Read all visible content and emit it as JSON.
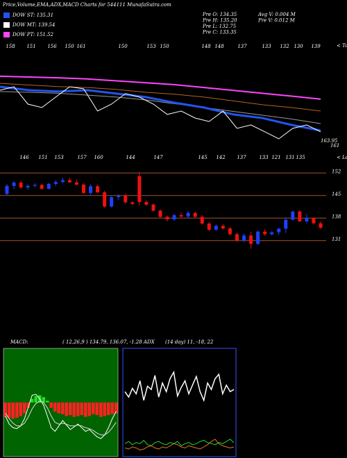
{
  "header": {
    "title": "Price,Volume,EMA,ADX,MACD Charts for 544111 MunafaSutra.com"
  },
  "legend": [
    {
      "label": "DOW ST: 135.31",
      "color": "#2255ee"
    },
    {
      "label": "DOW MT: 139.54",
      "color": "#ffffff"
    },
    {
      "label": "DOW PT: 151.52",
      "color": "#ff44ff"
    }
  ],
  "info": {
    "left": [
      "Pre  O: 134.35",
      "Pre  H: 135.20",
      "Pre  L: 132.75",
      "Pre  C: 133.35"
    ],
    "right": [
      "Avg  V: 0.004  M",
      "Pre  V: 0.012  M"
    ]
  },
  "chart_data": [
    {
      "type": "line",
      "top_labels": [
        "158",
        "151",
        "156",
        "150",
        "161",
        "150",
        "153",
        "150",
        "148",
        "148",
        "137",
        "133",
        "132",
        "130",
        "139"
      ],
      "tops_label": "< Tops",
      "last_label": "163.95",
      "corner_label": "161",
      "ylim": [
        120,
        160
      ],
      "series": [
        {
          "color": "#ff44ff",
          "width": 2,
          "values": [
            156.4,
            156,
            155.6,
            155,
            154,
            153,
            152,
            150.5,
            149,
            147.5,
            146,
            144.4
          ]
        },
        {
          "color": "#b5651d",
          "width": 1,
          "values": [
            152.7,
            151.8,
            151,
            150.5,
            149.5,
            148,
            147,
            145.5,
            143.5,
            141.5,
            140,
            138.2
          ]
        },
        {
          "color": "#999999",
          "width": 1,
          "values": [
            148.4,
            148,
            147.5,
            146.5,
            145.5,
            144,
            142,
            140,
            138,
            136,
            134,
            131.6
          ]
        },
        {
          "color": "#2255ee",
          "width": 3,
          "values": [
            150.9,
            149.1,
            148.4,
            149.1,
            147.3,
            145.5,
            142.5,
            140,
            136.4,
            134.5,
            130.9,
            128
          ]
        },
        {
          "color": "#ffffff",
          "width": 1,
          "values": [
            149.1,
            150.9,
            141.8,
            140,
            145.5,
            150.9,
            149.8,
            138.2,
            141.8,
            147.3,
            145.5,
            141.8,
            136.4,
            138.2,
            134.5,
            132.7,
            138.2,
            129.1,
            130.9,
            127.3,
            123.6,
            129.1,
            130.9,
            127.3
          ]
        }
      ]
    },
    {
      "type": "candlestick",
      "low_labels": [
        "146",
        "151",
        "153",
        "157",
        "160",
        "144",
        "147",
        "145",
        "142",
        "137",
        "133",
        "121",
        "131",
        "135"
      ],
      "lows_label": "< Lows",
      "ylim": [
        126,
        154
      ],
      "yticks": [
        131,
        138,
        145,
        152
      ],
      "up_color": "#1f3fff",
      "down_color": "#ee1111",
      "grid_color": "#a0522d",
      "open": [
        145.5,
        148.0,
        149.0,
        147.5,
        148.0,
        148.3,
        147.1,
        148.6,
        149.2,
        149.8,
        149.1,
        148.4,
        145.8,
        147.9,
        146.0,
        141.6,
        144.5,
        145.0,
        142.9,
        151.0,
        143.0,
        142.2,
        140.3,
        138.4,
        137.6,
        138.9,
        138.5,
        139.6,
        138.4,
        136.3,
        134.4,
        135.6,
        134.8,
        133.0,
        131.0,
        132.6,
        130.0,
        133.8,
        133.0,
        133.6,
        134.7,
        137.5,
        140.0,
        137.0,
        138.0,
        136.4
      ],
      "high": [
        148.6,
        149.5,
        149.6,
        148.5,
        148.8,
        148.6,
        149.0,
        149.8,
        150.6,
        150.5,
        150.0,
        148.8,
        148.5,
        148.4,
        146.5,
        144.8,
        145.4,
        145.7,
        143.2,
        152.3,
        143.5,
        142.6,
        140.7,
        138.8,
        139.4,
        139.8,
        140.2,
        140.0,
        138.9,
        136.8,
        136.0,
        136.1,
        135.2,
        133.5,
        133.2,
        133.8,
        134.2,
        134.5,
        134.0,
        135.0,
        138.3,
        140.4,
        140.5,
        139.3,
        138.2,
        137.0
      ],
      "low": [
        145.0,
        147.0,
        147.2,
        146.9,
        147.5,
        146.8,
        146.9,
        148.0,
        148.8,
        148.9,
        148.2,
        145.5,
        145.0,
        145.7,
        141.2,
        141.3,
        143.6,
        142.5,
        142.0,
        142.0,
        141.8,
        140.0,
        138.0,
        137.0,
        137.2,
        138.1,
        138.0,
        138.2,
        136.0,
        134.0,
        134.0,
        134.5,
        132.6,
        130.6,
        130.5,
        128.5,
        129.6,
        132.5,
        132.6,
        132.8,
        133.4,
        137.2,
        136.7,
        136.4,
        136.0,
        134.6
      ],
      "close": [
        148.0,
        149.0,
        147.5,
        148.0,
        148.3,
        147.1,
        148.6,
        149.2,
        149.8,
        149.1,
        148.4,
        145.8,
        147.9,
        146.0,
        141.6,
        144.5,
        145.0,
        142.9,
        142.4,
        143.0,
        142.2,
        140.3,
        138.4,
        137.6,
        138.9,
        138.5,
        139.6,
        138.4,
        136.3,
        134.4,
        135.6,
        134.8,
        133.0,
        131.0,
        132.6,
        130.0,
        133.8,
        133.0,
        133.6,
        134.7,
        137.5,
        140.0,
        137.0,
        138.0,
        136.4,
        135.0
      ]
    },
    {
      "type": "macd",
      "title": "MACD:",
      "params": "( 12,26,9 ) 134.79, 136.07, -1.28 ADX",
      "ylim": [
        -6,
        6
      ],
      "pos_color": "#22dd22",
      "neg_color": "#ff2222",
      "hist": [
        -1.6,
        -1.7,
        -1.8,
        -1.7,
        -1.5,
        -1.2,
        -0.6,
        0.4,
        0.7,
        0.8,
        0.6,
        0.2,
        -0.6,
        -1.0,
        -1.2,
        -1.3,
        -1.5,
        -1.4,
        -1.6,
        -1.5,
        -1.4,
        -1.6,
        -1.5,
        -1.3,
        -1.4,
        -1.6,
        -1.5,
        -1.4,
        -1.3,
        -1.2
      ],
      "series": [
        {
          "color": "#ffffff",
          "values": [
            -1.5,
            -2.4,
            -2.8,
            -2.9,
            -2.6,
            -1.8,
            -0.5,
            0.8,
            0.9,
            0.4,
            -0.3,
            -1.5,
            -2.8,
            -3.2,
            -2.6,
            -2.0,
            -2.5,
            -3.0,
            -2.7,
            -2.4,
            -2.8,
            -3.2,
            -3.0,
            -3.4,
            -3.8,
            -4.0,
            -3.6,
            -2.8,
            -1.8,
            -1.0
          ]
        },
        {
          "color": "#dddddd",
          "values": [
            -1.2,
            -1.8,
            -2.3,
            -2.6,
            -2.6,
            -2.3,
            -1.6,
            -0.7,
            -0.1,
            0.1,
            0.0,
            -0.6,
            -1.5,
            -2.2,
            -2.4,
            -2.3,
            -2.4,
            -2.6,
            -2.6,
            -2.5,
            -2.6,
            -2.8,
            -2.9,
            -3.1,
            -3.4,
            -3.6,
            -3.6,
            -3.3,
            -2.8,
            -2.2
          ]
        }
      ]
    },
    {
      "type": "adx",
      "params": "(14 day) 11, -18, 22",
      "ylim": [
        0,
        100
      ],
      "series": [
        {
          "color": "#ffffff",
          "values": [
            60,
            55,
            63,
            58,
            70,
            52,
            65,
            62,
            75,
            55,
            68,
            60,
            72,
            78,
            56,
            64,
            70,
            58,
            66,
            74,
            60,
            52,
            68,
            62,
            72,
            76,
            58,
            66,
            60,
            62
          ]
        },
        {
          "color": "#22dd22",
          "values": [
            12,
            14,
            11,
            13,
            12,
            15,
            11,
            10,
            13,
            14,
            12,
            11,
            13,
            12,
            14,
            10,
            12,
            13,
            11,
            12,
            14,
            15,
            13,
            12,
            11,
            13,
            12,
            14,
            16,
            13
          ]
        },
        {
          "color": "#dd7722",
          "values": [
            8,
            7,
            9,
            8,
            6,
            7,
            9,
            10,
            8,
            7,
            9,
            8,
            10,
            12,
            11,
            9,
            8,
            10,
            9,
            8,
            7,
            9,
            11,
            14,
            16,
            12,
            10,
            9,
            8,
            9
          ]
        }
      ]
    }
  ]
}
